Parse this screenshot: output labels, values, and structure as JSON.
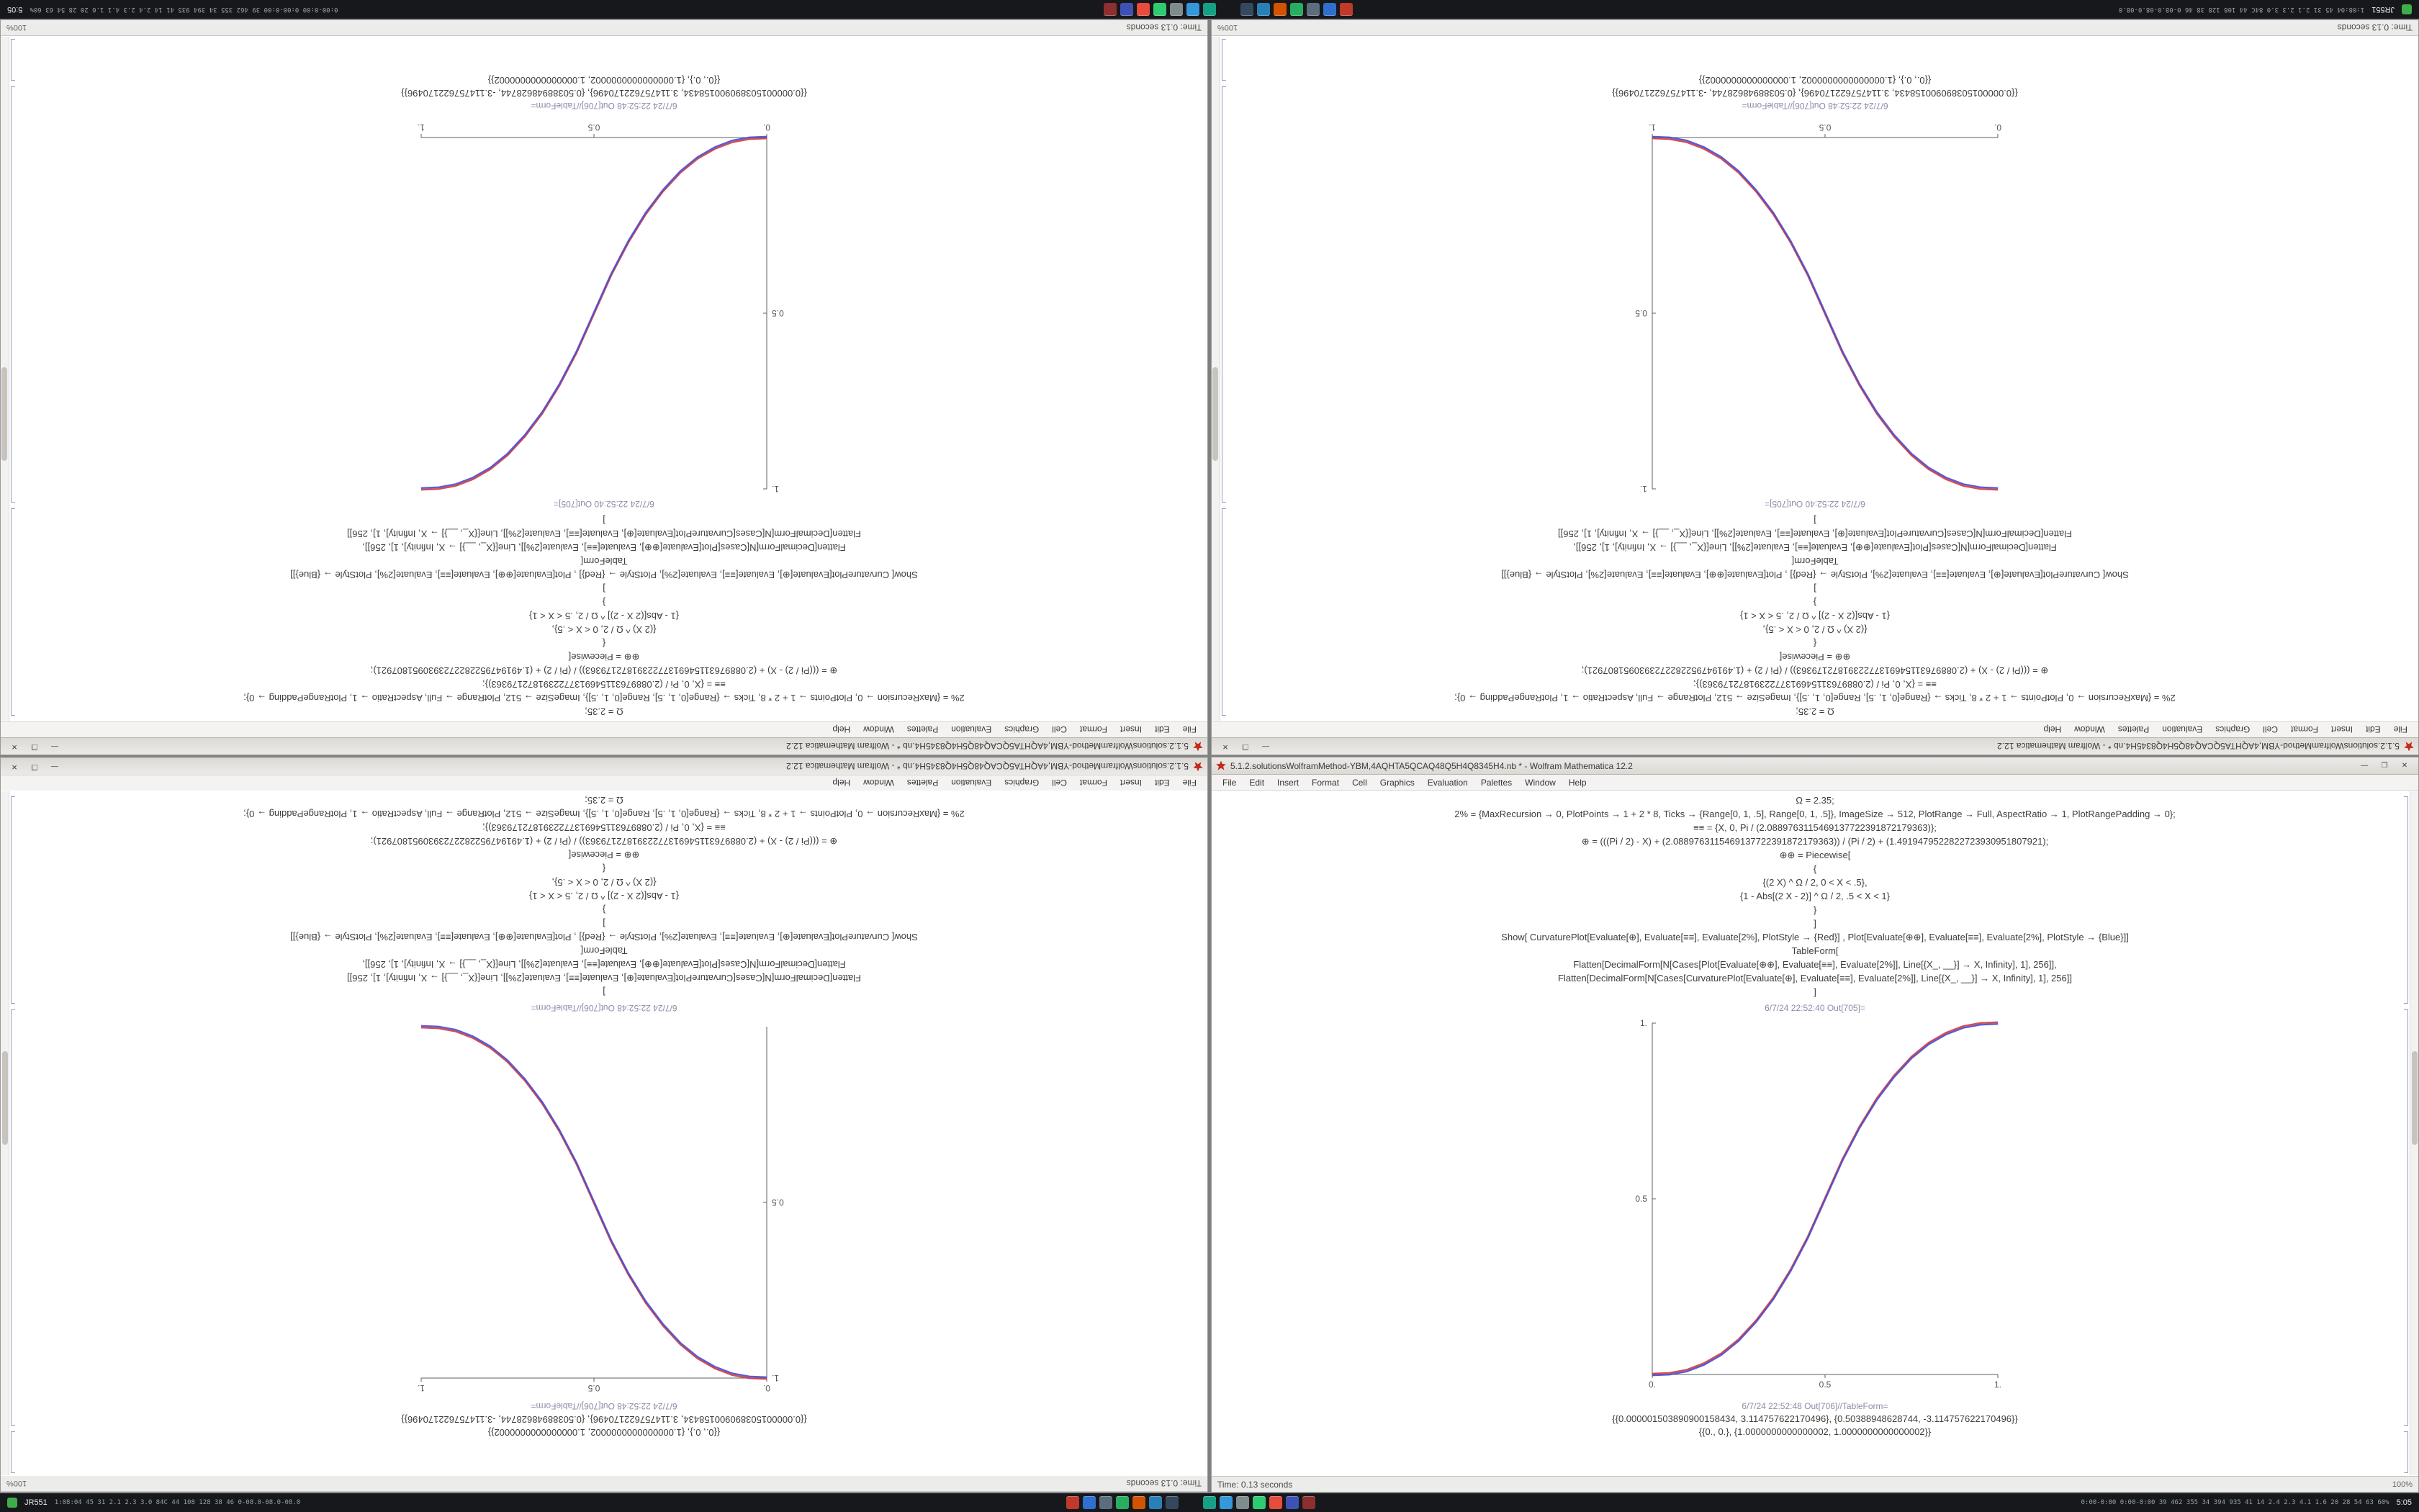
{
  "taskbar": {
    "left_app_label": "JR551",
    "left_app_color": "#3fae4a",
    "left_stats": "1:08:04 45 31 2.1 2.3 3.0 84C 44 108 128 38 46 0-08.0-08.0-08.0",
    "right_stats": "0:00-0:00 0:00-0:00 39 462 355 34 394 935 41 14 2.4 2.3 4.1 1.6 20 28 54 63 60%",
    "clock": "5:05",
    "clusters": [
      {
        "icons": [
          {
            "name": "app-red",
            "color": "#c0392b"
          },
          {
            "name": "app-blue",
            "color": "#2e6fd0"
          },
          {
            "name": "app-slate",
            "color": "#5d6d7e"
          },
          {
            "name": "app-green",
            "color": "#27ae60"
          },
          {
            "name": "app-orange",
            "color": "#d35400"
          },
          {
            "name": "app-blue-2",
            "color": "#2980b9"
          },
          {
            "name": "app-navy",
            "color": "#34495e"
          }
        ]
      },
      {
        "icons": [
          {
            "name": "app-teal",
            "color": "#16a085"
          },
          {
            "name": "app-blue-3",
            "color": "#3498db"
          },
          {
            "name": "app-gray",
            "color": "#7f8c8d"
          },
          {
            "name": "app-green-2",
            "color": "#2ecc71"
          },
          {
            "name": "app-red-2",
            "color": "#e74c3c"
          },
          {
            "name": "app-indigo",
            "color": "#3f51b5"
          },
          {
            "name": "app-maroon",
            "color": "#8e2f2f"
          }
        ]
      }
    ]
  },
  "shared": {
    "title": "5.1.2.solutionsWolframMethod-YBM,4AQHTA5QCAQ48Q5H4Q8345H4.nb * - Wolfram Mathematica 12.2",
    "menu": [
      "File",
      "Edit",
      "Insert",
      "Format",
      "Cell",
      "Graphics",
      "Evaluation",
      "Palettes",
      "Window",
      "Help"
    ],
    "buttons": {
      "minimize": "—",
      "maximize": "❐",
      "close": "✕"
    },
    "magnification": "100%",
    "code_lines": [
      "Ω = 2.35;",
      "2% = {MaxRecursion → 0, PlotPoints → 1 + 2 * 8, Ticks → {Range[0, 1, .5], Range[0, 1, .5]}, ImageSize → 512, PlotRange → Full, AspectRatio → 1, PlotRangePadding → 0};",
      "≡≡ = {X, 0, Pi / (2.0889763115469137722391872179363)};",
      "⊕ = (((Pi / 2) - X) + (2.0889763115469137722391872179363)) / (Pi / 2) + (1.4919479522822723930951807921);",
      "⊕⊕ = Piecewise[",
      "{",
      "{(2 X) ^ Ω / 2, 0 < X < .5},",
      "{1 - Abs[(2 X - 2)] ^ Ω / 2, .5 < X < 1}",
      "}",
      "]",
      "Show[ CurvaturePlot[Evaluate[⊕], Evaluate[≡≡], Evaluate[2%], PlotStyle → {Red}] , Plot[Evaluate[⊕⊕], Evaluate[≡≡], Evaluate[2%], PlotStyle → {Blue}]]",
      "TableForm[",
      "Flatten[DecimalForm[N[Cases[Plot[Evaluate[⊕⊕], Evaluate[≡≡], Evaluate[2%]], Line[{X_, __}] → X, Infinity], 1], 256]],",
      "Flatten[DecimalForm[N[Cases[CurvaturePlot[Evaluate[⊕], Evaluate[≡≡], Evaluate[2%]], Line[{X_, __}] → X, Infinity], 1], 256]]",
      "]"
    ]
  },
  "windows": [
    {
      "position": "top-left",
      "mode": "rotate-window",
      "status": "Time: 0.13 seconds",
      "out_plot_label": "6/7/24 22:52:40 Out[705]=",
      "out_table_label": "6/7/24 22:52:48 Out[706]//TableForm=",
      "table_rows": [
        "{{0.000001503890900158434, 3.114757622170496}, {0.50388948628744, -3.114757622170496}}",
        "{{0., 0.}, {1.0000000000000002, 1.0000000000000002}}"
      ]
    },
    {
      "position": "top-right",
      "mode": "rotate-window",
      "status": "Time: 0.13 seconds",
      "out_plot_label": "6/7/24 22:52:40 Out[705]=",
      "out_table_label": "6/7/24 22:52:48 Out[706]//TableForm=",
      "table_rows": [
        "{{0.000001503890900158434, 3.114757622170496}, {0.50388948628744, -3.114757622170496}}",
        "{{0., 0.}, {1.0000000000000002, 1.0000000000000002}}"
      ]
    },
    {
      "position": "bottom-left",
      "mode": "rotate-rows",
      "status": "Time: 0.13 seconds",
      "out_plot_label": "6/7/24 22:52:48 Out[706]//TableForm=",
      "out_table_label": "6/7/24 22:52:48 Out[706]//TableForm=",
      "table_rows": [
        "{{0.000001503890900158434, 3.114757622170496}, {0.50388948628744, -3.114757622170496}}",
        "{{0., 0.}, {1.0000000000000002, 1.0000000000000002}}"
      ]
    },
    {
      "position": "bottom-right",
      "mode": "normal",
      "status": "Time: 0.13 seconds",
      "out_plot_label": "6/7/24 22:52:40 Out[705]=",
      "out_table_label": "6/7/24 22:52:48 Out[706]//TableForm=",
      "table_rows": [
        "{{0.000001503890900158434, 3.114757622170496}, {0.50388948628744, -3.114757622170496}}",
        "{{0., 0.}, {1.0000000000000002, 1.0000000000000002}}"
      ]
    }
  ],
  "chart_data": [
    {
      "window": "top-left",
      "type": "line",
      "title": "",
      "xlabel": "",
      "ylabel": "",
      "xlim": [
        0,
        1
      ],
      "ylim": [
        0,
        1
      ],
      "grid": false,
      "x_ticks": [
        "0.",
        "0.5",
        "1."
      ],
      "x_tick_values": [
        0,
        0.5,
        1
      ],
      "y_ticks": [
        "0.5",
        "1."
      ],
      "y_tick_values": [
        0.5,
        1
      ],
      "y_axis": "left",
      "x_axis": "bottom",
      "series": [
        {
          "name": "curvature-plot-red",
          "color": "#d23a3a"
        },
        {
          "name": "plot-blue",
          "color": "#4a4ad2"
        }
      ],
      "points": [
        [
          0,
          0
        ],
        [
          0.05,
          0.002
        ],
        [
          0.1,
          0.011
        ],
        [
          0.15,
          0.03
        ],
        [
          0.2,
          0.058
        ],
        [
          0.25,
          0.098
        ],
        [
          0.3,
          0.151
        ],
        [
          0.35,
          0.216
        ],
        [
          0.4,
          0.296
        ],
        [
          0.45,
          0.39
        ],
        [
          0.5,
          0.5
        ],
        [
          0.55,
          0.61
        ],
        [
          0.6,
          0.704
        ],
        [
          0.65,
          0.784
        ],
        [
          0.7,
          0.849
        ],
        [
          0.75,
          0.902
        ],
        [
          0.8,
          0.942
        ],
        [
          0.85,
          0.97
        ],
        [
          0.9,
          0.989
        ],
        [
          0.95,
          0.998
        ],
        [
          1,
          1
        ]
      ]
    },
    {
      "window": "top-right",
      "type": "line",
      "title": "",
      "xlabel": "",
      "ylabel": "",
      "xlim": [
        0,
        1
      ],
      "ylim": [
        0,
        1
      ],
      "grid": false,
      "x_ticks": [
        "0.",
        "0.5",
        "1."
      ],
      "x_tick_values": [
        0,
        0.5,
        1
      ],
      "y_ticks": [
        "0.5",
        "1."
      ],
      "y_tick_values": [
        0.5,
        1
      ],
      "y_axis": "right",
      "x_axis": "bottom",
      "series": [
        {
          "name": "curvature-plot-red",
          "color": "#d23a3a"
        },
        {
          "name": "plot-blue",
          "color": "#4a4ad2"
        }
      ],
      "points": [
        [
          0,
          1
        ],
        [
          0.05,
          0.998
        ],
        [
          0.1,
          0.989
        ],
        [
          0.15,
          0.97
        ],
        [
          0.2,
          0.942
        ],
        [
          0.25,
          0.902
        ],
        [
          0.3,
          0.849
        ],
        [
          0.35,
          0.784
        ],
        [
          0.4,
          0.704
        ],
        [
          0.45,
          0.61
        ],
        [
          0.5,
          0.5
        ],
        [
          0.55,
          0.39
        ],
        [
          0.6,
          0.296
        ],
        [
          0.65,
          0.216
        ],
        [
          0.7,
          0.151
        ],
        [
          0.75,
          0.098
        ],
        [
          0.8,
          0.058
        ],
        [
          0.85,
          0.03
        ],
        [
          0.9,
          0.011
        ],
        [
          0.95,
          0.002
        ],
        [
          1,
          0
        ]
      ]
    },
    {
      "window": "bottom-left",
      "type": "line",
      "title": "",
      "xlabel": "",
      "ylabel": "",
      "xlim": [
        0,
        1
      ],
      "ylim": [
        0,
        1
      ],
      "grid": false,
      "x_ticks": [
        "0.",
        "0.5",
        "1."
      ],
      "x_tick_values": [
        0,
        0.5,
        1
      ],
      "y_ticks": [
        "0.5",
        "1."
      ],
      "y_tick_values": [
        0.5,
        1
      ],
      "y_axis": "left",
      "x_axis": "top",
      "series": [
        {
          "name": "curvature-plot-red",
          "color": "#d23a3a"
        },
        {
          "name": "plot-blue",
          "color": "#4a4ad2"
        }
      ],
      "points": [
        [
          0,
          1
        ],
        [
          0.05,
          0.998
        ],
        [
          0.1,
          0.989
        ],
        [
          0.15,
          0.97
        ],
        [
          0.2,
          0.942
        ],
        [
          0.25,
          0.902
        ],
        [
          0.3,
          0.849
        ],
        [
          0.35,
          0.784
        ],
        [
          0.4,
          0.704
        ],
        [
          0.45,
          0.61
        ],
        [
          0.5,
          0.5
        ],
        [
          0.55,
          0.39
        ],
        [
          0.6,
          0.296
        ],
        [
          0.65,
          0.216
        ],
        [
          0.7,
          0.151
        ],
        [
          0.75,
          0.098
        ],
        [
          0.8,
          0.058
        ],
        [
          0.85,
          0.03
        ],
        [
          0.9,
          0.011
        ],
        [
          0.95,
          0.002
        ],
        [
          1,
          0
        ]
      ]
    },
    {
      "window": "bottom-right",
      "type": "line",
      "title": "",
      "xlabel": "",
      "ylabel": "",
      "xlim": [
        0,
        1
      ],
      "ylim": [
        0,
        1
      ],
      "grid": false,
      "x_ticks": [
        "0.",
        "0.5",
        "1."
      ],
      "x_tick_values": [
        0,
        0.5,
        1
      ],
      "y_ticks": [
        "0.5",
        "1."
      ],
      "y_tick_values": [
        0.5,
        1
      ],
      "y_axis": "left",
      "x_axis": "bottom",
      "series": [
        {
          "name": "curvature-plot-red",
          "color": "#d23a3a"
        },
        {
          "name": "plot-blue",
          "color": "#4a4ad2"
        }
      ],
      "points": [
        [
          0,
          0
        ],
        [
          0.05,
          0.002
        ],
        [
          0.1,
          0.011
        ],
        [
          0.15,
          0.03
        ],
        [
          0.2,
          0.058
        ],
        [
          0.25,
          0.098
        ],
        [
          0.3,
          0.151
        ],
        [
          0.35,
          0.216
        ],
        [
          0.4,
          0.296
        ],
        [
          0.45,
          0.39
        ],
        [
          0.5,
          0.5
        ],
        [
          0.55,
          0.61
        ],
        [
          0.6,
          0.704
        ],
        [
          0.65,
          0.784
        ],
        [
          0.7,
          0.849
        ],
        [
          0.75,
          0.902
        ],
        [
          0.8,
          0.942
        ],
        [
          0.85,
          0.97
        ],
        [
          0.9,
          0.989
        ],
        [
          0.95,
          0.998
        ],
        [
          1,
          1
        ]
      ]
    }
  ]
}
